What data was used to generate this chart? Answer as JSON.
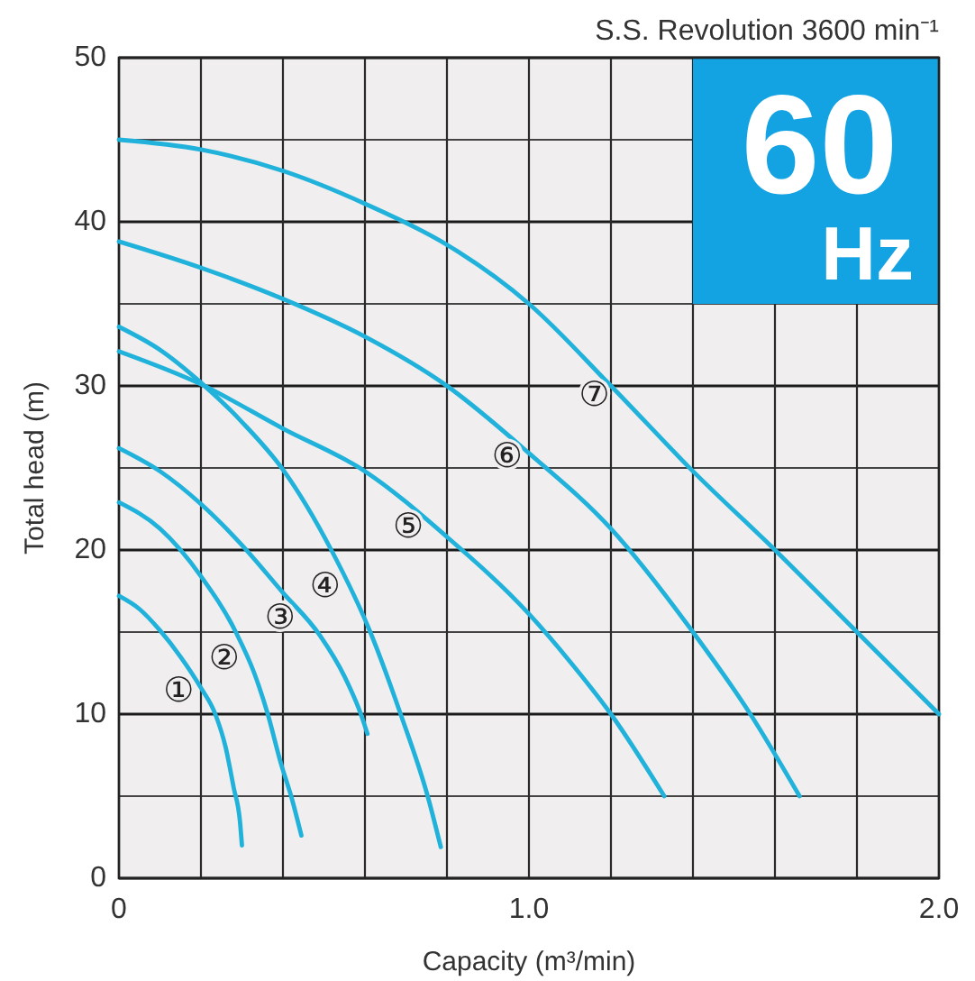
{
  "chart_data": {
    "type": "line",
    "title": "S.S. Revolution 3600 min⁻¹",
    "xlabel": "Capacity (m³/min)",
    "ylabel": "Total head (m)",
    "annotations": [
      "60",
      "Hz"
    ],
    "xlim": [
      0,
      2
    ],
    "ylim": [
      0,
      50
    ],
    "xticks": [
      0,
      {
        "value": 0.2,
        "label": null
      },
      {
        "value": 0.4,
        "label": null
      },
      {
        "value": 0.6,
        "label": null
      },
      {
        "value": 0.8,
        "label": null
      },
      {
        "value": 1,
        "label": "1.0"
      },
      {
        "value": 1.2,
        "label": null
      },
      {
        "value": 1.4,
        "label": null
      },
      {
        "value": 1.6,
        "label": null
      },
      {
        "value": 1.8,
        "label": null
      },
      {
        "value": 2,
        "label": "2.0"
      }
    ],
    "yticks": [
      0,
      {
        "value": 5,
        "label": null
      },
      10,
      {
        "value": 15,
        "label": null
      },
      20,
      {
        "value": 25,
        "label": null
      },
      30,
      {
        "value": 35,
        "label": null
      },
      40,
      {
        "value": 45,
        "label": null
      },
      50
    ],
    "grid": true,
    "marker": "none",
    "line_style": "solid",
    "series": [
      {
        "name": "①",
        "color": "#20b2da",
        "x": [
          0,
          0.05,
          0.1,
          0.15,
          0.2,
          0.235,
          0.26,
          0.28,
          0.295,
          0.3
        ],
        "values": [
          17.2,
          16.4,
          15.1,
          13.5,
          11.6,
          10,
          8,
          5.5,
          3.5,
          2
        ]
      },
      {
        "name": "②",
        "color": "#20b2da",
        "x": [
          0,
          0.1,
          0.2,
          0.285,
          0.33,
          0.363,
          0.395,
          0.42,
          0.445
        ],
        "values": [
          22.9,
          21.3,
          18.4,
          15,
          12.5,
          10,
          7,
          5,
          2.6
        ]
      },
      {
        "name": "③",
        "color": "#20b2da",
        "x": [
          0,
          0.1,
          0.2,
          0.3,
          0.4,
          0.49,
          0.55,
          0.59,
          0.606
        ],
        "values": [
          26.2,
          24.8,
          22.8,
          20.3,
          17.4,
          14.8,
          12.3,
          10,
          8.8
        ]
      },
      {
        "name": "④",
        "color": "#20b2da",
        "x": [
          0,
          0.1,
          0.2,
          0.3,
          0.4,
          0.518,
          0.613,
          0.687,
          0.753,
          0.785
        ],
        "values": [
          33.6,
          32.2,
          30.2,
          27.8,
          24.9,
          20,
          15,
          10,
          5,
          1.9
        ]
      },
      {
        "name": "⑤",
        "color": "#20b2da",
        "x": [
          0,
          0.2,
          0.4,
          0.6,
          0.8,
          1,
          1.1,
          1.2,
          1.33
        ],
        "values": [
          32.1,
          30.1,
          27.4,
          24.8,
          20.8,
          16.1,
          13.2,
          10,
          5
        ]
      },
      {
        "name": "⑥",
        "color": "#20b2da",
        "x": [
          0,
          0.2,
          0.4,
          0.6,
          0.8,
          1,
          1.2,
          1.4,
          1.54,
          1.66
        ],
        "values": [
          38.8,
          37.2,
          35.3,
          33,
          30,
          25.9,
          21.3,
          15,
          10,
          5
        ]
      },
      {
        "name": "⑦",
        "color": "#20b2da",
        "x": [
          0,
          0.2,
          0.4,
          0.6,
          0.8,
          1,
          1.2,
          1.4,
          1.6,
          1.8,
          2
        ],
        "values": [
          45,
          44.4,
          43.1,
          41.1,
          38.6,
          35,
          30,
          24.8,
          20,
          15,
          10
        ]
      }
    ]
  }
}
